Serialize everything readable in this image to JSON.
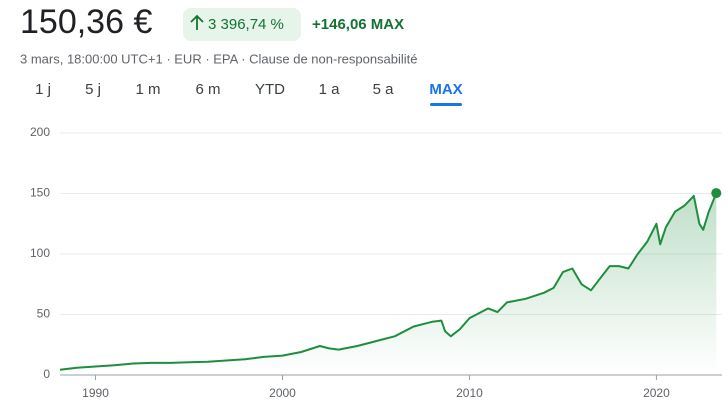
{
  "header": {
    "price": "150,36 €",
    "change_percent": "3 396,74 %",
    "change_abs": "+146,06 MAX",
    "subtitle": "3 mars, 18:00:00 UTC+1 · EUR · EPA · Clause de non-responsabilité"
  },
  "tabs": [
    "1 j",
    "5 j",
    "1 m",
    "6 m",
    "YTD",
    "1 a",
    "5 a",
    "MAX"
  ],
  "active_tab": 7,
  "chart_data": {
    "type": "line",
    "color": "#1e8e3e",
    "grid": true,
    "x": [
      1988.1,
      1989,
      1990,
      1991,
      1992,
      1993,
      1994,
      1995,
      1996,
      1997,
      1998,
      1999,
      2000,
      2001,
      2002,
      2002.5,
      2003,
      2004,
      2005,
      2006,
      2007,
      2007.5,
      2008,
      2008.5,
      2008.7,
      2009,
      2009.5,
      2010,
      2011,
      2011.5,
      2012,
      2013,
      2014,
      2014.5,
      2015,
      2015.5,
      2016,
      2016.5,
      2017,
      2017.5,
      2018,
      2018.5,
      2019,
      2019.5,
      2020,
      2020.2,
      2020.5,
      2021,
      2021.5,
      2022,
      2022.3,
      2022.5,
      2022.8,
      2023.2
    ],
    "values": [
      4.3,
      6,
      7,
      8,
      9.5,
      10,
      10,
      10.5,
      11,
      12,
      13,
      15,
      16,
      19,
      24,
      22,
      21,
      24,
      28,
      32,
      40,
      42,
      44,
      45,
      36,
      32,
      38,
      47,
      55,
      52,
      60,
      63,
      68,
      72,
      85,
      88,
      75,
      70,
      80,
      90,
      90,
      88,
      100,
      110,
      125,
      108,
      122,
      135,
      140,
      148,
      125,
      120,
      135,
      150.36
    ],
    "xlim": [
      1988.1,
      2023.4
    ],
    "ylim": [
      0,
      200
    ],
    "xticks": [
      1990,
      2000,
      2010,
      2020
    ],
    "yticks": [
      0,
      50,
      100,
      150,
      200
    ]
  }
}
